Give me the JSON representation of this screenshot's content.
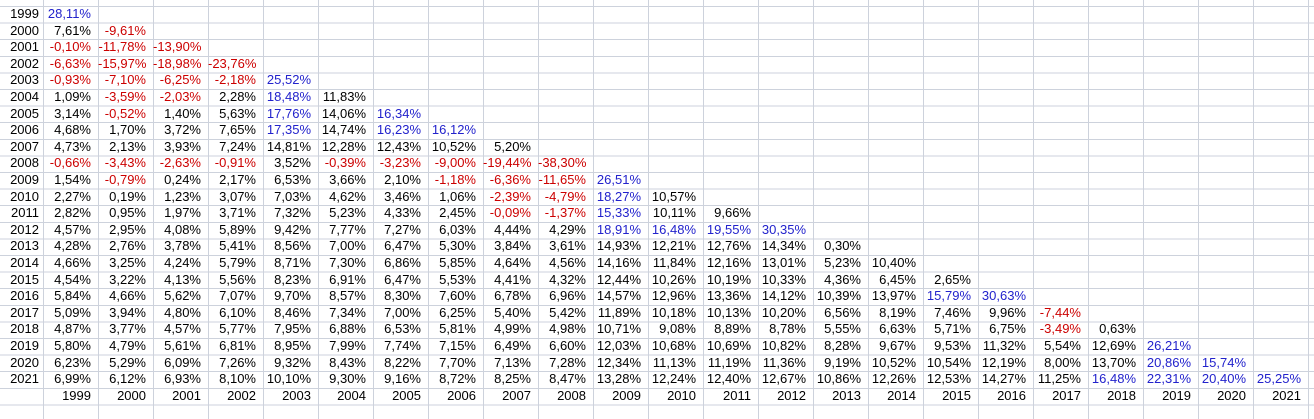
{
  "chart_data": {
    "type": "table",
    "row_header_years": [
      "1999",
      "2000",
      "2001",
      "2002",
      "2003",
      "2004",
      "2005",
      "2006",
      "2007",
      "2008",
      "2009",
      "2010",
      "2011",
      "2012",
      "2013",
      "2014",
      "2015",
      "2016",
      "2017",
      "2018",
      "2019",
      "2020",
      "2021"
    ],
    "col_axis_years": [
      "1999",
      "2000",
      "2001",
      "2002",
      "2003",
      "2004",
      "2005",
      "2006",
      "2007",
      "2008",
      "2009",
      "2010",
      "2011",
      "2012",
      "2013",
      "2014",
      "2015",
      "2016",
      "2017",
      "2018",
      "2019",
      "2020",
      "2021"
    ],
    "rows": [
      {
        "year": "1999",
        "values": [
          28.11
        ]
      },
      {
        "year": "2000",
        "values": [
          7.61,
          -9.61
        ]
      },
      {
        "year": "2001",
        "values": [
          -0.1,
          -11.78,
          -13.9
        ]
      },
      {
        "year": "2002",
        "values": [
          -6.63,
          -15.97,
          -18.98,
          -23.76
        ]
      },
      {
        "year": "2003",
        "values": [
          -0.93,
          -7.1,
          -6.25,
          -2.18,
          25.52
        ]
      },
      {
        "year": "2004",
        "values": [
          1.09,
          -3.59,
          -2.03,
          2.28,
          18.48,
          11.83
        ]
      },
      {
        "year": "2005",
        "values": [
          3.14,
          -0.52,
          1.4,
          5.63,
          17.76,
          14.06,
          16.34
        ]
      },
      {
        "year": "2006",
        "values": [
          4.68,
          1.7,
          3.72,
          7.65,
          17.35,
          14.74,
          16.23,
          16.12
        ]
      },
      {
        "year": "2007",
        "values": [
          4.73,
          2.13,
          3.93,
          7.24,
          14.81,
          12.28,
          12.43,
          10.52,
          5.2
        ]
      },
      {
        "year": "2008",
        "values": [
          -0.66,
          -3.43,
          -2.63,
          -0.91,
          3.52,
          -0.39,
          -3.23,
          -9.0,
          -19.44,
          -38.3
        ]
      },
      {
        "year": "2009",
        "values": [
          1.54,
          -0.79,
          0.24,
          2.17,
          6.53,
          3.66,
          2.1,
          -1.18,
          -6.36,
          -11.65,
          26.51
        ]
      },
      {
        "year": "2010",
        "values": [
          2.27,
          0.19,
          1.23,
          3.07,
          7.03,
          4.62,
          3.46,
          1.06,
          -2.39,
          -4.79,
          18.27,
          10.57
        ]
      },
      {
        "year": "2011",
        "values": [
          2.82,
          0.95,
          1.97,
          3.71,
          7.32,
          5.23,
          4.33,
          2.45,
          -0.09,
          -1.37,
          15.33,
          10.11,
          9.66
        ]
      },
      {
        "year": "2012",
        "values": [
          4.57,
          2.95,
          4.08,
          5.89,
          9.42,
          7.77,
          7.27,
          6.03,
          4.44,
          4.29,
          18.91,
          16.48,
          19.55,
          30.35
        ]
      },
      {
        "year": "2013",
        "values": [
          4.28,
          2.76,
          3.78,
          5.41,
          8.56,
          7.0,
          6.47,
          5.3,
          3.84,
          3.61,
          14.93,
          12.21,
          12.76,
          14.34,
          0.3
        ]
      },
      {
        "year": "2014",
        "values": [
          4.66,
          3.25,
          4.24,
          5.79,
          8.71,
          7.3,
          6.86,
          5.85,
          4.64,
          4.56,
          14.16,
          11.84,
          12.16,
          13.01,
          5.23,
          10.4
        ]
      },
      {
        "year": "2015",
        "values": [
          4.54,
          3.22,
          4.13,
          5.56,
          8.23,
          6.91,
          6.47,
          5.53,
          4.41,
          4.32,
          12.44,
          10.26,
          10.19,
          10.33,
          4.36,
          6.45,
          2.65
        ]
      },
      {
        "year": "2016",
        "values": [
          5.84,
          4.66,
          5.62,
          7.07,
          9.7,
          8.57,
          8.3,
          7.6,
          6.78,
          6.96,
          14.57,
          12.96,
          13.36,
          14.12,
          10.39,
          13.97,
          15.79,
          30.63
        ]
      },
      {
        "year": "2017",
        "values": [
          5.09,
          3.94,
          4.8,
          6.1,
          8.46,
          7.34,
          7.0,
          6.25,
          5.4,
          5.42,
          11.89,
          10.18,
          10.13,
          10.2,
          6.56,
          8.19,
          7.46,
          9.96,
          -7.44
        ]
      },
      {
        "year": "2018",
        "values": [
          4.87,
          3.77,
          4.57,
          5.77,
          7.95,
          6.88,
          6.53,
          5.81,
          4.99,
          4.98,
          10.71,
          9.08,
          8.89,
          8.78,
          5.55,
          6.63,
          5.71,
          6.75,
          -3.49,
          0.63
        ]
      },
      {
        "year": "2019",
        "values": [
          5.8,
          4.79,
          5.61,
          6.81,
          8.95,
          7.99,
          7.74,
          7.15,
          6.49,
          6.6,
          12.03,
          10.68,
          10.69,
          10.82,
          8.28,
          9.67,
          9.53,
          11.32,
          5.54,
          12.69,
          26.21
        ]
      },
      {
        "year": "2020",
        "values": [
          6.23,
          5.29,
          6.09,
          7.26,
          9.32,
          8.43,
          8.22,
          7.7,
          7.13,
          7.28,
          12.34,
          11.13,
          11.19,
          11.36,
          9.19,
          10.52,
          10.54,
          12.19,
          8.0,
          13.7,
          20.86,
          15.74
        ]
      },
      {
        "year": "2021",
        "values": [
          6.99,
          6.12,
          6.93,
          8.1,
          10.1,
          9.3,
          9.16,
          8.72,
          8.25,
          8.47,
          13.28,
          12.24,
          12.4,
          12.67,
          10.86,
          12.26,
          12.53,
          14.27,
          11.25,
          16.48,
          22.31,
          20.4,
          25.25
        ]
      }
    ]
  },
  "format": {
    "decimals": 2,
    "decimal_separator": ",",
    "suffix": "%"
  },
  "colors": {
    "default_text": "#000000",
    "negative_text": "#cc0000",
    "high_text": "#2222cc",
    "gridline": "#cdd2dc",
    "background": "#ffffff",
    "high_threshold_percent": 15
  }
}
